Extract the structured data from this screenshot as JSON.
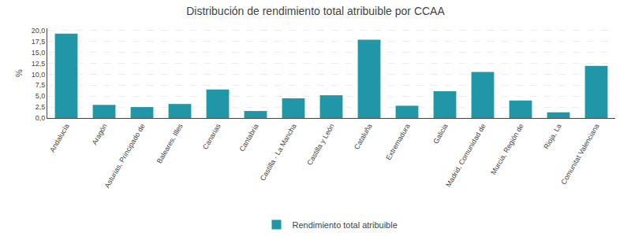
{
  "chart_data": {
    "type": "bar",
    "title": "Distribución de rendimiento total atribuible por CCAA",
    "categories": [
      "Andalucía",
      "Aragón",
      "Asturias, Principado de",
      "Baleares, Illes",
      "Canarias",
      "Cantabria",
      "Castilla - La Mancha",
      "Castilla y León",
      "Cataluña",
      "Extremadura",
      "Galicia",
      "Madrid, Comunidad de",
      "Murcia, Región de",
      "Rioja, La",
      "Comunitat Valenciana"
    ],
    "series": [
      {
        "name": "Rendimiento total atribuible",
        "color": "#2196A6",
        "values": [
          19.3,
          3.0,
          2.5,
          3.2,
          6.5,
          1.6,
          4.5,
          5.2,
          17.9,
          2.8,
          6.1,
          10.5,
          4.0,
          1.3,
          11.9
        ]
      }
    ],
    "ylabel": "%",
    "ylim": [
      0,
      20.5
    ],
    "yticks": [
      {
        "value": 0.0,
        "label": "0,0"
      },
      {
        "value": 2.5,
        "label": "2,5"
      },
      {
        "value": 5.0,
        "label": "5,0"
      },
      {
        "value": 7.5,
        "label": "7,5"
      },
      {
        "value": 10.0,
        "label": "10,0"
      },
      {
        "value": 12.5,
        "label": "12,5"
      },
      {
        "value": 15.0,
        "label": "15,0"
      },
      {
        "value": 17.5,
        "label": "17,5"
      },
      {
        "value": 20.0,
        "label": "20,0"
      }
    ],
    "grid": true,
    "legend": "bottom"
  }
}
